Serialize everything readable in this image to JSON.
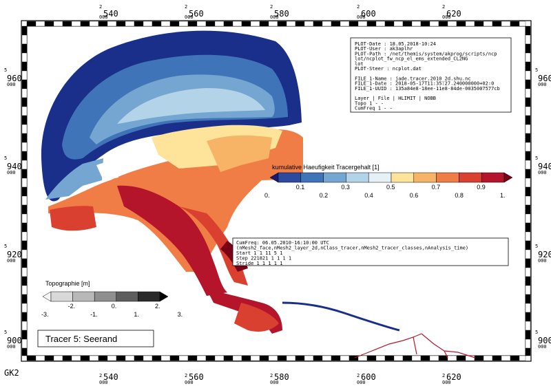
{
  "axes": {
    "x_ticks": [
      {
        "major": "2540",
        "minor": "000"
      },
      {
        "major": "2560",
        "minor": "000"
      },
      {
        "major": "2580",
        "minor": "000"
      },
      {
        "major": "2600",
        "minor": "000"
      },
      {
        "major": "2620",
        "minor": "000"
      }
    ],
    "y_ticks": [
      {
        "major": "5960",
        "minor": "000"
      },
      {
        "major": "5940",
        "minor": "000"
      },
      {
        "major": "5920",
        "minor": "000"
      },
      {
        "major": "5900",
        "minor": "000"
      }
    ],
    "crs_label": "GK2"
  },
  "info_box": {
    "lines": [
      "PLOT-Date  : 18.05.2018-10:24",
      "PLOT-User  : ak3aplhr",
      "PLOT-Path  : /net/themis/system/akprog/scripts/ncp",
      "             lot/ncplot_fw_ncp_el_ems_extended_CL2NG",
      "             lot",
      "PLOT-Steer : ncplot.dat",
      "",
      "FILE_1-Name : jade.tracer.2010_2d.shu.nc",
      "FILE_1-Date : 2018-05-17T11:35:27.240000000+02:0",
      "FILE_1-UUID : 135a84e8-18ee-11e8-84de-0035007577cb",
      "",
      "Layer  | File | HLIMIT | NOBB",
      "Topo    1      -      -",
      "CumFreq 1      -      -"
    ]
  },
  "colorbar_tracer": {
    "title": "kumulative Haeufigkeit Tracergehalt [1]",
    "upper_ticks": [
      "0.1",
      "0.3",
      "0.5",
      "0.7",
      "0.9"
    ],
    "lower_ticks": [
      "0.",
      "0.2",
      "0.4",
      "0.6",
      "0.8",
      "1."
    ],
    "colors": [
      "#1a1a6e",
      "#2b4aa0",
      "#3f75b8",
      "#74a6d1",
      "#b3d4e8",
      "#e6f1f7",
      "#fde49a",
      "#f7b466",
      "#ef7d45",
      "#d94030",
      "#b5152b",
      "#7a0015"
    ]
  },
  "time_box": {
    "lines": [
      "CumFreq: 06.05.2010-16:10:00 UTC",
      "(nMesh2_face,nMesh2_layer_2d,nClass_tracer,nMesh2_tracer_classes,nAnalysis_time)",
      "Start      1      1     11      5      1",
      "Step  221821      1      1      1      1",
      "Stride     1      1      1      1      1"
    ]
  },
  "colorbar_topo": {
    "title": "Topographie [m]",
    "upper_ticks": [
      "-2.",
      "0.",
      "2."
    ],
    "lower_ticks": [
      "-3.",
      "-1.",
      "1.",
      "3."
    ],
    "colors": [
      "#f5f5f5",
      "#d8d8d8",
      "#b8b8b8",
      "#8f8f8f",
      "#5e5e5e",
      "#2a2a2a",
      "#000000"
    ]
  },
  "tracer_label": "Tracer 5: Seerand"
}
